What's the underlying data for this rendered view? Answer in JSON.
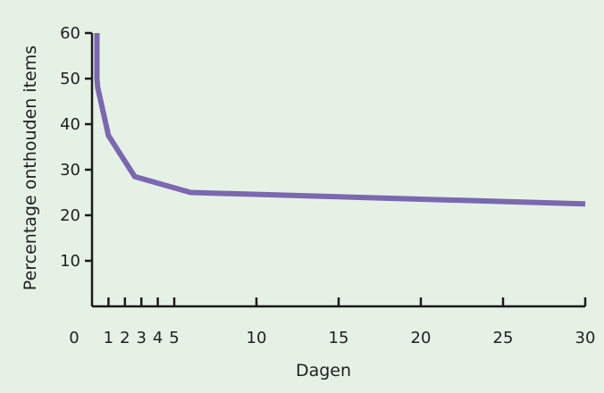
{
  "chart_data": {
    "type": "line",
    "title": "",
    "xlabel": "Dagen",
    "ylabel": "Percentage onthouden items",
    "xlim": [
      0,
      30
    ],
    "ylim": [
      0,
      60
    ],
    "x_ticks": [
      {
        "value": 0,
        "label": "0"
      },
      {
        "value": 1,
        "label": "1"
      },
      {
        "value": 2,
        "label": "2"
      },
      {
        "value": 3,
        "label": "3"
      },
      {
        "value": 4,
        "label": "4"
      },
      {
        "value": 5,
        "label": "5"
      },
      {
        "value": 10,
        "label": "10"
      },
      {
        "value": 15,
        "label": "15"
      },
      {
        "value": 20,
        "label": "20"
      },
      {
        "value": 25,
        "label": "25"
      },
      {
        "value": 30,
        "label": "30"
      }
    ],
    "y_ticks": [
      {
        "value": 10,
        "label": "10"
      },
      {
        "value": 20,
        "label": "20"
      },
      {
        "value": 30,
        "label": "30"
      },
      {
        "value": 40,
        "label": "40"
      },
      {
        "value": 50,
        "label": "50"
      },
      {
        "value": 60,
        "label": "60"
      }
    ],
    "grid": false,
    "series": [
      {
        "color": "#7b68b0",
        "x": [
          0.3,
          0.3,
          0.35,
          1,
          2.6,
          6,
          30
        ],
        "y": [
          60,
          50,
          48,
          37.5,
          28.5,
          25,
          22.5
        ]
      }
    ]
  }
}
